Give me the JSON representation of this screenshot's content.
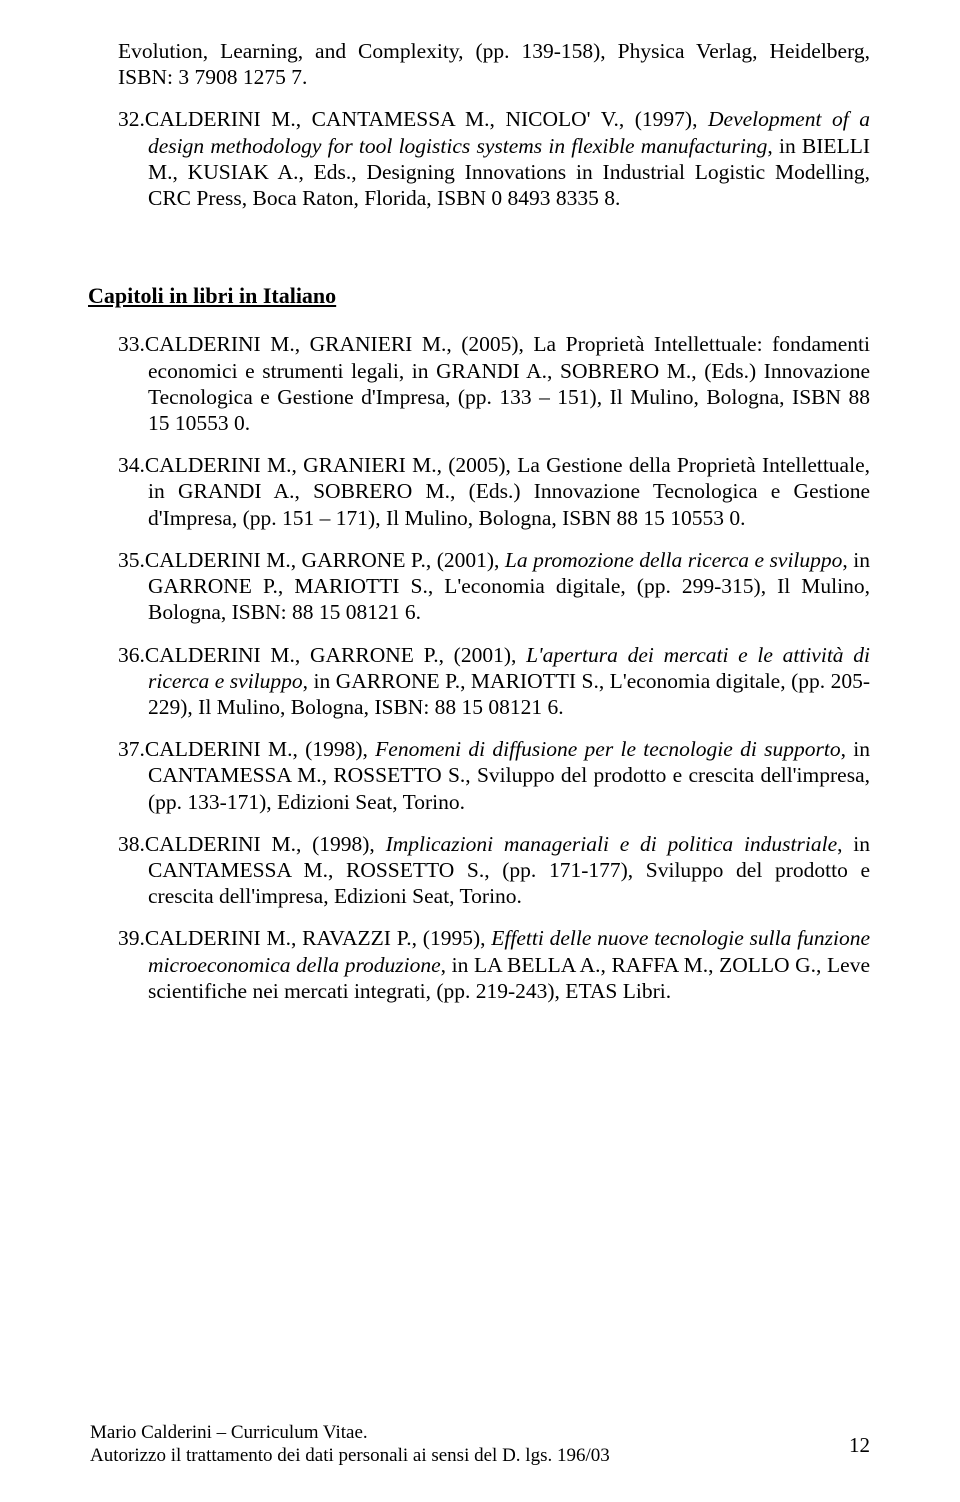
{
  "entries_before": [
    {
      "text": "Evolution, Learning, and Complexity, (pp. 139-158), Physica Verlag, Heidelberg, ISBN: 3 7908 1275 7."
    },
    {
      "prefix": "32.",
      "html": "CALDERINI M., CANTAMESSA M., NICOLO' V., (1997), <span class=\"italic\">Development of a design methodology for tool logistics systems in flexible manufacturing</span>, in BIELLI M., KUSIAK A., Eds., Designing Innovations in Industrial Logistic Modelling, CRC Press, Boca Raton, Florida, ISBN 0 8493 8335 8."
    }
  ],
  "section_heading": "Capitoli in libri in Italiano",
  "entries_after": [
    {
      "prefix": "33.",
      "html": "CALDERINI M., GRANIERI M., (2005), La Proprietà Intellettuale: fondamenti economici e strumenti legali, in GRANDI A., SOBRERO M., (Eds.) Innovazione Tecnologica e Gestione d'Impresa, (pp. 133 – 151), Il Mulino, Bologna, ISBN 88 15 10553 0."
    },
    {
      "prefix": "34.",
      "html": "CALDERINI M., GRANIERI M., (2005), La Gestione della Proprietà Intellettuale, in GRANDI A., SOBRERO M., (Eds.) Innovazione Tecnologica e Gestione d'Impresa, (pp. 151 – 171), Il Mulino, Bologna, ISBN 88 15 10553 0."
    },
    {
      "prefix": "35.",
      "html": "CALDERINI M., GARRONE P., (2001), <span class=\"italic\">La promozione della ricerca e sviluppo</span>, in GARRONE P., MARIOTTI S., L'economia digitale, (pp. 299-315), Il Mulino, Bologna, ISBN: 88 15 08121 6."
    },
    {
      "prefix": "36.",
      "html": "CALDERINI M., GARRONE P., (2001), <span class=\"italic\">L'apertura dei mercati e le attività di ricerca e sviluppo</span>, in GARRONE P., MARIOTTI S., L'economia digitale, (pp. 205-229), Il Mulino, Bologna, ISBN: 88 15 08121 6."
    },
    {
      "prefix": "37.",
      "html": "CALDERINI M., (1998), <span class=\"italic\">Fenomeni di diffusione per le tecnologie di supporto</span>, in CANTAMESSA M., ROSSETTO S., Sviluppo del prodotto e crescita dell'impresa, (pp. 133-171), Edizioni Seat, Torino."
    },
    {
      "prefix": "38.",
      "html": "CALDERINI M., (1998), <span class=\"italic\">Implicazioni manageriali e di politica industriale</span>, in CANTAMESSA M., ROSSETTO S., (pp. 171-177), Sviluppo del prodotto e crescita dell'impresa, Edizioni Seat, Torino."
    },
    {
      "prefix": "39.",
      "html": "CALDERINI M., RAVAZZI P., (1995), <span class=\"italic\">Effetti delle nuove tecnologie sulla funzione microeconomica della produzione</span>, in LA BELLA A., RAFFA M., ZOLLO G., Leve scientifiche nei mercati integrati, (pp. 219-243), ETAS Libri."
    }
  ],
  "footer": {
    "line1": "Mario Calderini – Curriculum Vitae.",
    "line2": "Autorizzo il trattamento dei dati personali ai sensi del D. lgs. 196/03",
    "page_number": "12"
  }
}
